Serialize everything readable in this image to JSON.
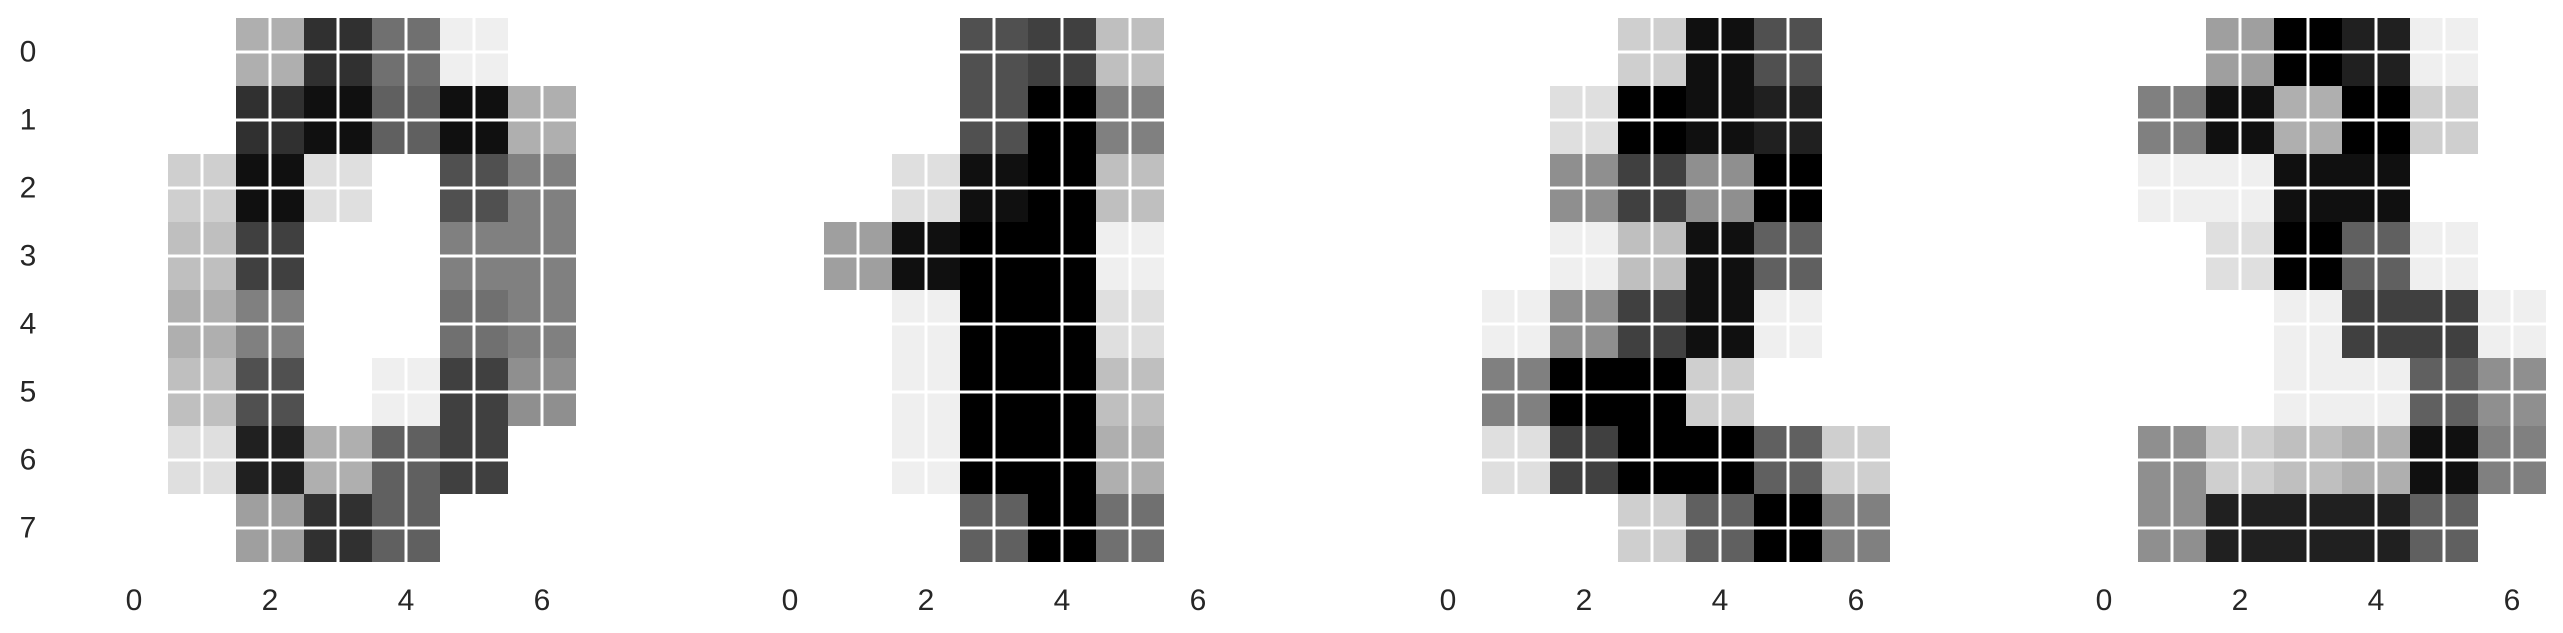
{
  "chart_data": [
    {
      "type": "heatmap",
      "colormap": "gray_r",
      "grid": true,
      "grid_color": "#ffffff",
      "xlim": [
        -0.5,
        7.5
      ],
      "ylim": [
        7.5,
        -0.5
      ],
      "xticks": [
        "0",
        "2",
        "4",
        "6"
      ],
      "yticks": [
        "0",
        "1",
        "2",
        "3",
        "4",
        "5",
        "6",
        "7"
      ],
      "vmin": 0,
      "vmax": 16,
      "values": [
        [
          0,
          0,
          5,
          13,
          9,
          1,
          0,
          0
        ],
        [
          0,
          0,
          13,
          15,
          10,
          15,
          5,
          0
        ],
        [
          0,
          3,
          15,
          2,
          0,
          11,
          8,
          0
        ],
        [
          0,
          4,
          12,
          0,
          0,
          8,
          8,
          0
        ],
        [
          0,
          5,
          8,
          0,
          0,
          9,
          8,
          0
        ],
        [
          0,
          4,
          11,
          0,
          1,
          12,
          7,
          0
        ],
        [
          0,
          2,
          14,
          5,
          10,
          12,
          0,
          0
        ],
        [
          0,
          0,
          6,
          13,
          10,
          0,
          0,
          0
        ]
      ]
    },
    {
      "type": "heatmap",
      "colormap": "gray_r",
      "grid": true,
      "grid_color": "#ffffff",
      "xlim": [
        -0.5,
        7.5
      ],
      "ylim": [
        7.5,
        -0.5
      ],
      "xticks": [
        "0",
        "2",
        "4",
        "6"
      ],
      "yticks": [],
      "vmin": 0,
      "vmax": 16,
      "values": [
        [
          0,
          0,
          0,
          11,
          12,
          4,
          0,
          0
        ],
        [
          0,
          0,
          0,
          11,
          16,
          8,
          0,
          0
        ],
        [
          0,
          0,
          2,
          15,
          16,
          4,
          0,
          0
        ],
        [
          0,
          6,
          15,
          16,
          16,
          1,
          0,
          0
        ],
        [
          0,
          0,
          1,
          16,
          16,
          2,
          0,
          0
        ],
        [
          0,
          0,
          1,
          16,
          16,
          4,
          0,
          0
        ],
        [
          0,
          0,
          1,
          16,
          16,
          5,
          0,
          0
        ],
        [
          0,
          0,
          0,
          10,
          16,
          9,
          0,
          0
        ]
      ]
    },
    {
      "type": "heatmap",
      "colormap": "gray_r",
      "grid": true,
      "grid_color": "#ffffff",
      "xlim": [
        -0.5,
        7.5
      ],
      "ylim": [
        7.5,
        -0.5
      ],
      "xticks": [
        "0",
        "2",
        "4",
        "6"
      ],
      "yticks": [],
      "vmin": 0,
      "vmax": 16,
      "values": [
        [
          0,
          0,
          0,
          3,
          15,
          11,
          0,
          0
        ],
        [
          0,
          0,
          2,
          16,
          15,
          14,
          0,
          0
        ],
        [
          0,
          0,
          7,
          12,
          7,
          16,
          0,
          0
        ],
        [
          0,
          0,
          1,
          4,
          15,
          10,
          0,
          0
        ],
        [
          0,
          1,
          7,
          12,
          15,
          1,
          0,
          0
        ],
        [
          0,
          8,
          16,
          16,
          3,
          0,
          0,
          0
        ],
        [
          0,
          2,
          12,
          16,
          16,
          10,
          3,
          0
        ],
        [
          0,
          0,
          0,
          3,
          10,
          16,
          8,
          0
        ]
      ]
    },
    {
      "type": "heatmap",
      "colormap": "gray_r",
      "grid": true,
      "grid_color": "#ffffff",
      "xlim": [
        -0.5,
        7.5
      ],
      "ylim": [
        7.5,
        -0.5
      ],
      "xticks": [
        "0",
        "2",
        "4",
        "6"
      ],
      "yticks": [],
      "vmin": 0,
      "vmax": 16,
      "values": [
        [
          0,
          0,
          6,
          16,
          14,
          1,
          0,
          0
        ],
        [
          0,
          8,
          15,
          5,
          16,
          3,
          0,
          0
        ],
        [
          0,
          1,
          1,
          15,
          15,
          0,
          0,
          0
        ],
        [
          0,
          0,
          2,
          16,
          10,
          1,
          0,
          0
        ],
        [
          0,
          0,
          0,
          1,
          12,
          12,
          1,
          0
        ],
        [
          0,
          0,
          0,
          1,
          1,
          10,
          7,
          0
        ],
        [
          0,
          7,
          3,
          4,
          5,
          15,
          8,
          0
        ],
        [
          0,
          7,
          14,
          14,
          14,
          10,
          0,
          0
        ]
      ]
    }
  ]
}
